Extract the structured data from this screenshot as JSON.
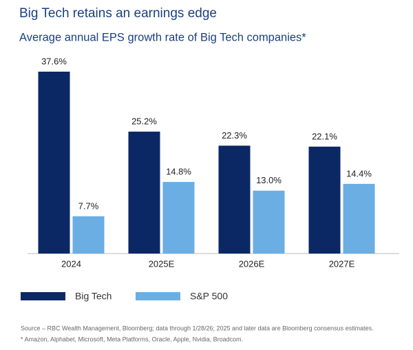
{
  "chart_data": {
    "type": "bar",
    "title": "Big Tech retains an earnings edge",
    "subtitle": "Average annual EPS growth rate of Big Tech companies*",
    "categories": [
      "2024",
      "2025E",
      "2026E",
      "2027E"
    ],
    "series": [
      {
        "name": "Big Tech",
        "color": "#0b2865",
        "values": [
          37.6,
          25.2,
          22.3,
          22.1
        ],
        "value_labels": [
          "37.6%",
          "25.2%",
          "22.3%",
          "22.1%"
        ]
      },
      {
        "name": "S&P 500",
        "color": "#6aaee4",
        "values": [
          7.7,
          14.8,
          13.0,
          14.4
        ],
        "value_labels": [
          "7.7%",
          "14.8%",
          "13.0%",
          "14.4%"
        ]
      }
    ],
    "source": "Source – RBC Wealth Management, Bloomberg; data through 1/28/26; 2025 and later data are Bloomberg consensus estimates.",
    "note": "* Amazon, Alphabet, Microsoft, Meta Platforms, Oracle, Apple, Nvidia, Broadcom."
  }
}
